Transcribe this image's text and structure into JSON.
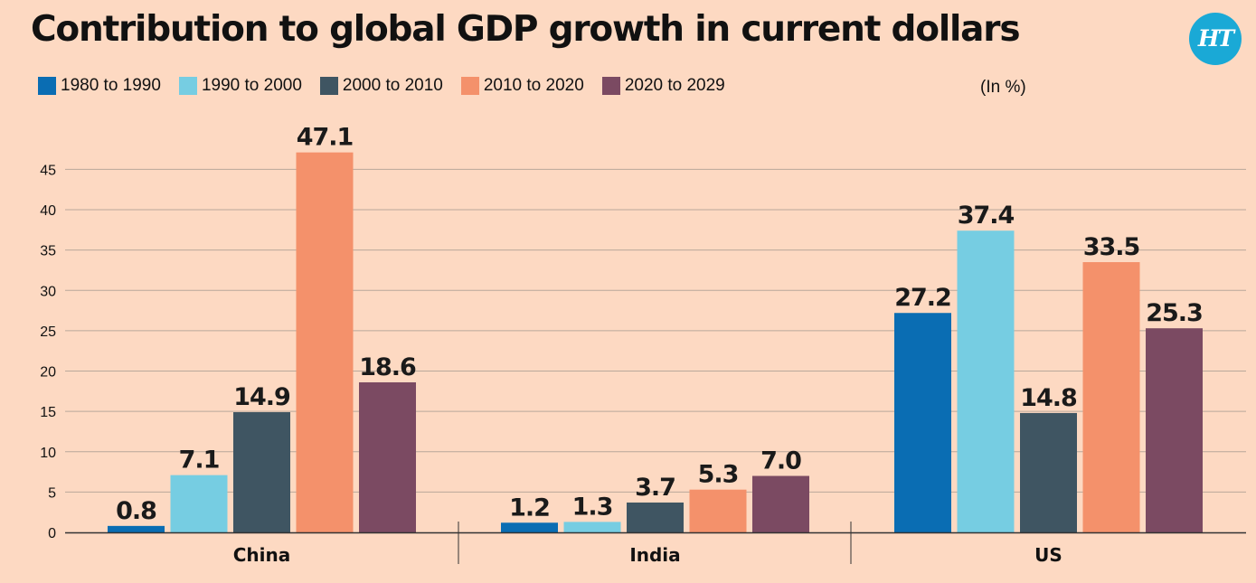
{
  "title": "Contribution to global GDP growth in current dollars",
  "logo_text": "HT",
  "unit": "(In %)",
  "colors": {
    "background": "#fdd9c2",
    "grid": "#b9a89a",
    "axis": "#333333",
    "logo": "#1aa9d6"
  },
  "chart_data": {
    "type": "bar",
    "title": "Contribution to global GDP growth in current dollars",
    "xlabel": "",
    "ylabel": "",
    "categories": [
      "China",
      "India",
      "US"
    ],
    "series": [
      {
        "name": "1980 to 1990",
        "color": "#0a6db3",
        "values": [
          0.8,
          1.2,
          27.2
        ],
        "labels": [
          "0.8",
          "1.2",
          "27.2"
        ]
      },
      {
        "name": "1990 to 2000",
        "color": "#76cde2",
        "values": [
          7.1,
          1.3,
          37.4
        ],
        "labels": [
          "7.1",
          "1.3",
          "37.4"
        ]
      },
      {
        "name": "2000 to 2010",
        "color": "#3f5562",
        "values": [
          14.9,
          3.7,
          14.8
        ],
        "labels": [
          "14.9",
          "3.7",
          "14.8"
        ]
      },
      {
        "name": "2010 to 2020",
        "color": "#f4916b",
        "values": [
          47.1,
          5.3,
          33.5
        ],
        "labels": [
          "47.1",
          "5.3",
          "33.5"
        ]
      },
      {
        "name": "2020 to 2029",
        "color": "#7b4a62",
        "values": [
          18.6,
          7.0,
          25.3
        ],
        "labels": [
          "18.6",
          "7.0",
          "25.3"
        ]
      }
    ],
    "ylim": [
      0,
      50
    ],
    "yticks": [
      0,
      5,
      10,
      15,
      20,
      25,
      30,
      35,
      40,
      45
    ],
    "grid": true,
    "legend": "top-left"
  }
}
